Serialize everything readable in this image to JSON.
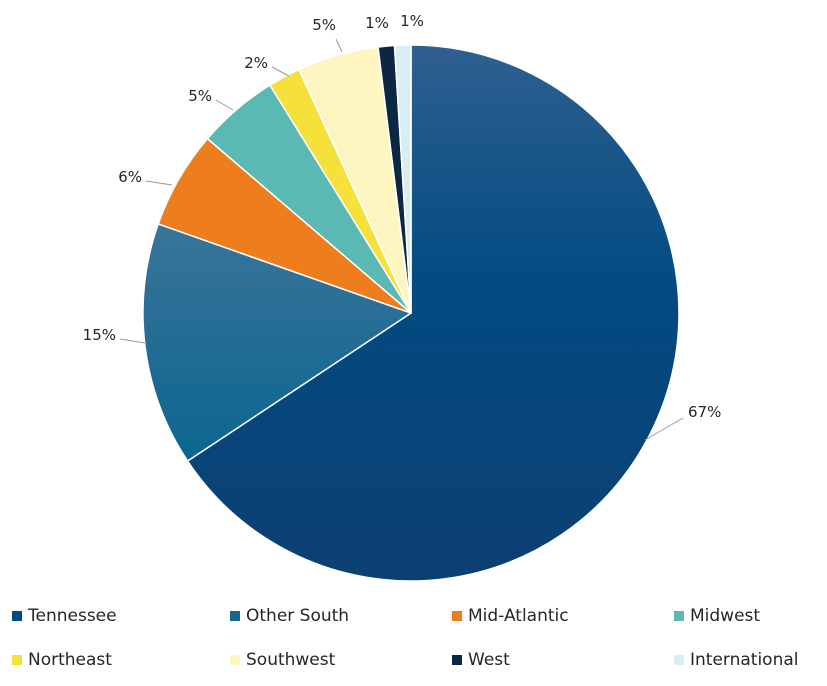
{
  "chart_data": {
    "type": "pie",
    "title": "",
    "start_angle_deg": 0,
    "direction": "clockwise",
    "slices": [
      {
        "name": "Tennessee",
        "value": 67,
        "label": "67%",
        "color": "#004a80"
      },
      {
        "name": "Other South",
        "value": 15,
        "label": "15%",
        "color": "#13678f"
      },
      {
        "name": "Mid-Atlantic",
        "value": 6,
        "label": "6%",
        "color": "#ee7d1e"
      },
      {
        "name": "Midwest",
        "value": 5,
        "label": "5%",
        "color": "#5bb9b4"
      },
      {
        "name": "Northeast",
        "value": 2,
        "label": "2%",
        "color": "#f6e03a"
      },
      {
        "name": "Southwest",
        "value": 5,
        "label": "5%",
        "color": "#fdf6c0"
      },
      {
        "name": "West",
        "value": 1,
        "label": "1%",
        "color": "#0c2741"
      },
      {
        "name": "International",
        "value": 1,
        "label": "1%",
        "color": "#d8eef2"
      }
    ],
    "legend_position": "bottom"
  }
}
